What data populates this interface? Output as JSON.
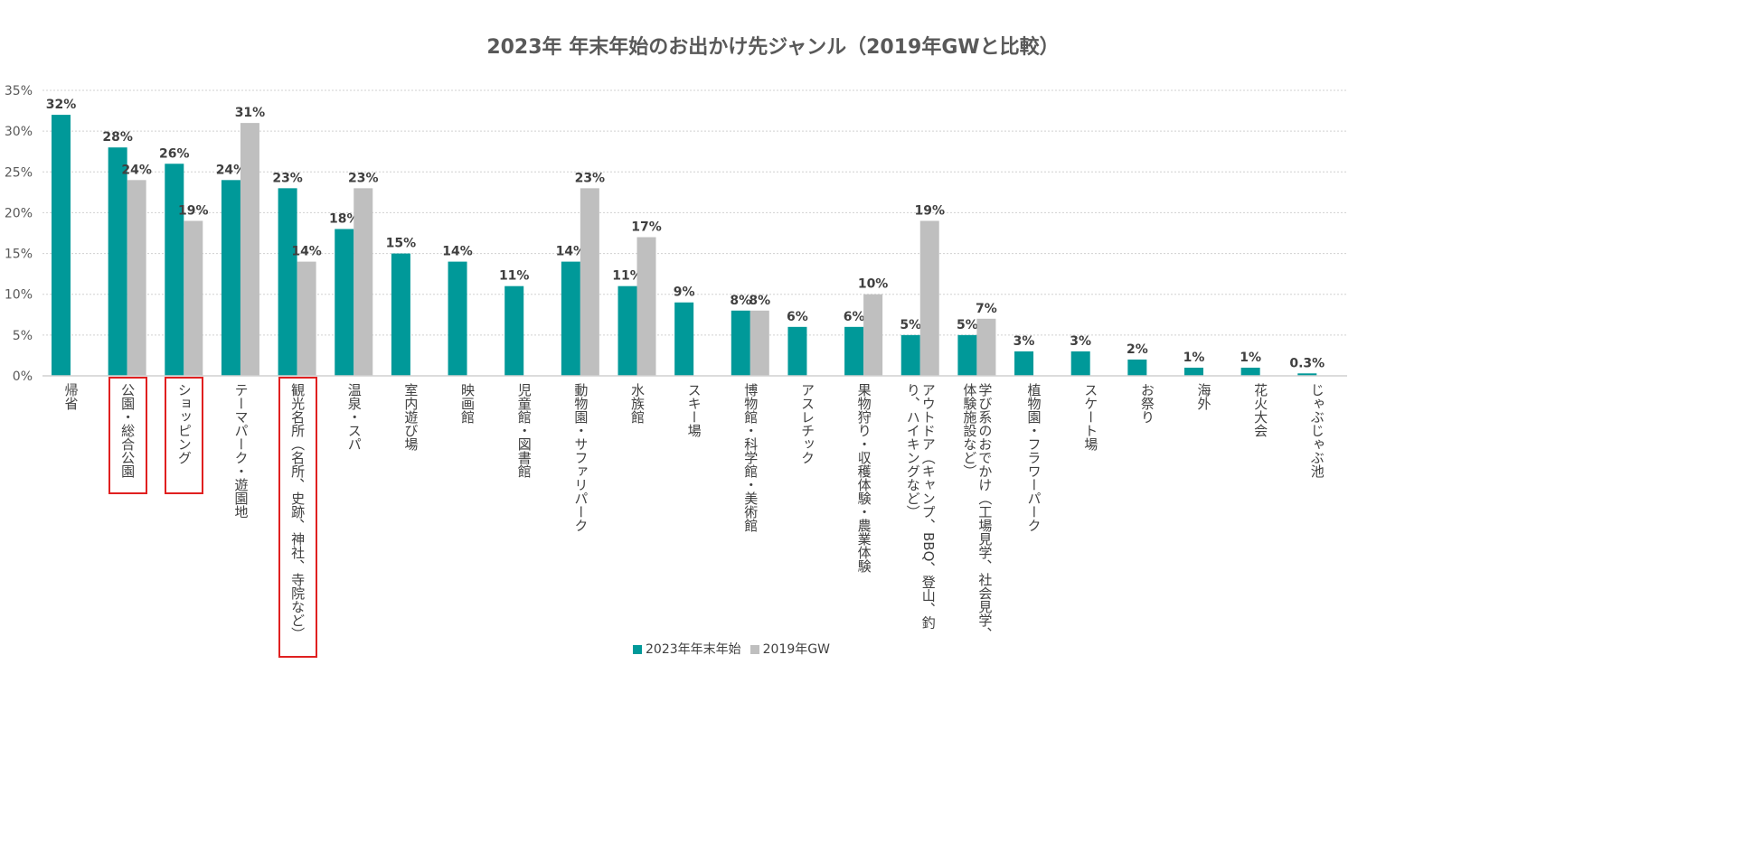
{
  "chart_data": {
    "type": "bar",
    "title": "2023年 年末年始のお出かけ先ジャンル（2019年GWと比較）",
    "xlabel": "",
    "ylabel": "",
    "ylim": [
      0,
      35
    ],
    "yticks": [
      "0%",
      "5%",
      "10%",
      "15%",
      "20%",
      "25%",
      "30%",
      "35%"
    ],
    "grid": true,
    "legend_position": "bottom",
    "categories": [
      "帰省",
      "公園・総合公園",
      "ショッピング",
      "テーマパーク・遊園地",
      "観光名所（名所、史跡、神社、寺院など）",
      "温泉・スパ",
      "室内遊び場",
      "映画館",
      "児童館・図書館",
      "動物園・サファリパーク",
      "水族館",
      "スキー場",
      "博物館・科学館・美術館",
      "アスレチック",
      "果物狩り・収穫体験・農業体験",
      "アウトドア（キャンプ、BBQ、登山、釣り、ハイキングなど）",
      "学び系のおでかけ（工場見学、社会見学、体験施設など）",
      "植物園・フラワーパーク",
      "スケート場",
      "お祭り",
      "海外",
      "花火大会",
      "じゃぶじゃぶ池"
    ],
    "highlighted_categories": [
      "公園・総合公園",
      "ショッピング",
      "観光名所（名所、史跡、神社、寺院など）"
    ],
    "series": [
      {
        "name": "2023年年末年始",
        "color": "#009999",
        "values": [
          32,
          28,
          26,
          24,
          23,
          18,
          15,
          14,
          11,
          14,
          11,
          9,
          8,
          6,
          6,
          5,
          5,
          3,
          3,
          2,
          1,
          1,
          0.3
        ],
        "labels": [
          "32%",
          "28%",
          "26%",
          "24%",
          "23%",
          "18%",
          "15%",
          "14%",
          "11%",
          "14%",
          "11%",
          "9%",
          "8%",
          "6%",
          "6%",
          "5%",
          "5%",
          "3%",
          "3%",
          "2%",
          "1%",
          "1%",
          "0.3%"
        ]
      },
      {
        "name": "2019年GW",
        "color": "#bfbfbf",
        "values": [
          null,
          24,
          19,
          31,
          14,
          23,
          null,
          null,
          null,
          23,
          17,
          null,
          8,
          null,
          10,
          19,
          7,
          null,
          null,
          null,
          null,
          null,
          null
        ],
        "labels": [
          null,
          "24%",
          "19%",
          "31%",
          "14%",
          "23%",
          null,
          null,
          null,
          "23%",
          "17%",
          null,
          "8%",
          null,
          "10%",
          "19%",
          "7%",
          null,
          null,
          null,
          null,
          null,
          null
        ]
      }
    ]
  }
}
